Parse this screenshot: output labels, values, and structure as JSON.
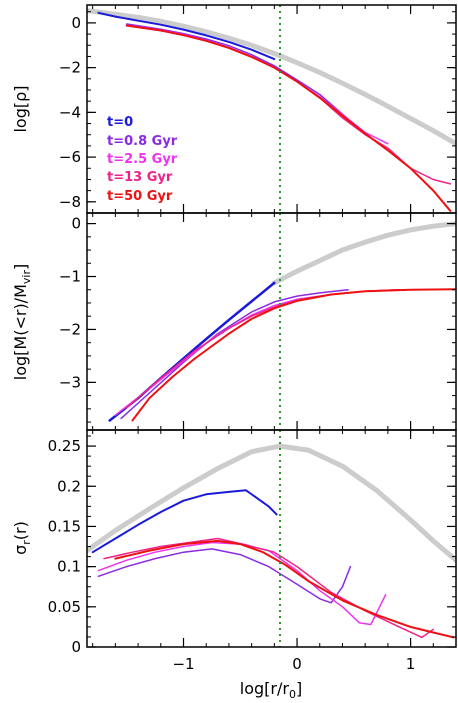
{
  "chart_data": [
    {
      "type": "line",
      "panel": "density",
      "ylabel": "log[ρ]",
      "xlim": [
        -1.85,
        1.4
      ],
      "ylim": [
        -8.5,
        0.8
      ],
      "yticks": [
        0,
        -2,
        -4,
        -6,
        -8
      ],
      "yticklabels": [
        "0",
        "−2",
        "−4",
        "−6",
        "−8"
      ],
      "legend": {
        "placement": "left",
        "entries": [
          {
            "label": "t=0",
            "color": "#1a1adb"
          },
          {
            "label": "t=0.8 Gyr",
            "color": "#8a2be2"
          },
          {
            "label": "t=2.5 Gyr",
            "color": "#ee33ee"
          },
          {
            "label": "t=13 Gyr",
            "color": "#ee2288"
          },
          {
            "label": "t=50 Gyr",
            "color": "#ee1111"
          }
        ]
      },
      "series": [
        {
          "color": "#cccccc",
          "width": 5,
          "x": [
            -1.85,
            -1.6,
            -1.4,
            -1.2,
            -1.0,
            -0.8,
            -0.6,
            -0.4,
            -0.2,
            0.0,
            0.2,
            0.4,
            0.6,
            0.8,
            1.0,
            1.2,
            1.4
          ],
          "y": [
            0.55,
            0.38,
            0.25,
            0.07,
            -0.15,
            -0.4,
            -0.68,
            -1.0,
            -1.37,
            -1.78,
            -2.22,
            -2.7,
            -3.2,
            -3.73,
            -4.27,
            -4.82,
            -5.4
          ]
        },
        {
          "color": "#1a1adb",
          "width": 2,
          "x": [
            -1.75,
            -1.6,
            -1.4,
            -1.2,
            -1.0,
            -0.8,
            -0.6,
            -0.4,
            -0.2
          ],
          "y": [
            0.45,
            0.28,
            0.1,
            -0.08,
            -0.3,
            -0.56,
            -0.85,
            -1.2,
            -1.62
          ]
        },
        {
          "color": "#8a2be2",
          "width": 1.5,
          "x": [
            -1.5,
            -1.2,
            -1.0,
            -0.8,
            -0.6,
            -0.4,
            -0.2,
            0.0,
            0.2,
            0.45
          ],
          "y": [
            -0.05,
            -0.28,
            -0.48,
            -0.72,
            -1.02,
            -1.42,
            -1.92,
            -2.55,
            -3.2,
            -4.3
          ]
        },
        {
          "color": "#ee33ee",
          "width": 1.5,
          "x": [
            -1.5,
            -1.2,
            -1.0,
            -0.8,
            -0.6,
            -0.4,
            -0.2,
            0.0,
            0.2,
            0.4,
            0.6,
            0.8
          ],
          "y": [
            -0.1,
            -0.32,
            -0.52,
            -0.78,
            -1.1,
            -1.5,
            -1.98,
            -2.62,
            -3.3,
            -4.1,
            -4.9,
            -5.4
          ]
        },
        {
          "color": "#ee2288",
          "width": 1.5,
          "x": [
            -1.5,
            -1.2,
            -1.0,
            -0.8,
            -0.6,
            -0.4,
            -0.2,
            0.0,
            0.2,
            0.4,
            0.6,
            0.8,
            1.0,
            1.2,
            1.35
          ],
          "y": [
            -0.12,
            -0.34,
            -0.55,
            -0.8,
            -1.12,
            -1.52,
            -2.0,
            -2.62,
            -3.35,
            -4.25,
            -5.0,
            -5.6,
            -6.5,
            -7.0,
            -7.2
          ]
        },
        {
          "color": "#ee1111",
          "width": 2,
          "x": [
            -1.5,
            -1.2,
            -1.0,
            -0.8,
            -0.6,
            -0.4,
            -0.2,
            0.0,
            0.2,
            0.4,
            0.6,
            0.8,
            1.0,
            1.2,
            1.35
          ],
          "y": [
            -0.12,
            -0.34,
            -0.55,
            -0.8,
            -1.12,
            -1.52,
            -2.0,
            -2.62,
            -3.35,
            -4.15,
            -4.95,
            -5.7,
            -6.5,
            -7.5,
            -8.4
          ]
        }
      ]
    },
    {
      "type": "line",
      "panel": "mass",
      "ylabel": "log[M(<r)/M_vir]",
      "xlim": [
        -1.85,
        1.4
      ],
      "ylim": [
        -3.9,
        0.2
      ],
      "yticks": [
        0,
        -1,
        -2,
        -3
      ],
      "yticklabels": [
        "0",
        "−1",
        "−2",
        "−3"
      ],
      "series": [
        {
          "color": "#cccccc",
          "width": 5,
          "x": [
            -0.2,
            0.0,
            0.2,
            0.4,
            0.6,
            0.8,
            1.0,
            1.2,
            1.4
          ],
          "y": [
            -1.12,
            -0.9,
            -0.7,
            -0.5,
            -0.35,
            -0.22,
            -0.12,
            -0.05,
            0.0
          ]
        },
        {
          "color": "#1a1adb",
          "width": 2.5,
          "x": [
            -1.65,
            -1.4,
            -1.2,
            -1.0,
            -0.8,
            -0.6,
            -0.4,
            -0.2
          ],
          "y": [
            -3.72,
            -3.3,
            -2.92,
            -2.55,
            -2.18,
            -1.82,
            -1.47,
            -1.12
          ]
        },
        {
          "color": "#8a2be2",
          "width": 1.5,
          "x": [
            -1.55,
            -1.3,
            -1.0,
            -0.7,
            -0.4,
            -0.2,
            0.0,
            0.2,
            0.45
          ],
          "y": [
            -3.68,
            -3.2,
            -2.62,
            -2.08,
            -1.67,
            -1.48,
            -1.37,
            -1.31,
            -1.25
          ]
        },
        {
          "color": "#ee33ee",
          "width": 1.5,
          "x": [
            -1.6,
            -1.3,
            -1.0,
            -0.7,
            -0.4,
            -0.2,
            0.0,
            0.3,
            0.6,
            0.9
          ],
          "y": [
            -3.62,
            -3.12,
            -2.6,
            -2.1,
            -1.73,
            -1.55,
            -1.43,
            -1.34,
            -1.28,
            -1.25
          ]
        },
        {
          "color": "#ee2288",
          "width": 1.5,
          "x": [
            -1.5,
            -1.2,
            -0.9,
            -0.6,
            -0.4,
            -0.2,
            0.0,
            0.3,
            0.6,
            0.9
          ],
          "y": [
            -3.48,
            -2.92,
            -2.4,
            -1.98,
            -1.75,
            -1.58,
            -1.45,
            -1.34,
            -1.28,
            -1.25
          ]
        },
        {
          "color": "#ee1111",
          "width": 2,
          "x": [
            -1.45,
            -1.3,
            -1.1,
            -0.9,
            -0.6,
            -0.4,
            -0.2,
            0.0,
            0.3,
            0.6,
            1.0,
            1.4
          ],
          "y": [
            -3.72,
            -3.3,
            -2.9,
            -2.55,
            -2.08,
            -1.8,
            -1.6,
            -1.46,
            -1.34,
            -1.28,
            -1.25,
            -1.24
          ]
        }
      ]
    },
    {
      "type": "line",
      "panel": "dispersion",
      "ylabel": "σ_r(r)",
      "xlabel": "log[r/r₀]",
      "xlim": [
        -1.85,
        1.4
      ],
      "ylim": [
        0,
        0.27
      ],
      "yticks": [
        0,
        0.05,
        0.1,
        0.15,
        0.2,
        0.25
      ],
      "yticklabels": [
        "0",
        "0.05",
        "0.1",
        "0.15",
        "0.2",
        "0.25"
      ],
      "xticks": [
        -1,
        0,
        1
      ],
      "xticklabels": [
        "−1",
        "0",
        "1"
      ],
      "vline_x": -0.15,
      "series": [
        {
          "color": "#cccccc",
          "width": 5,
          "x": [
            -1.85,
            -1.6,
            -1.3,
            -1.0,
            -0.7,
            -0.4,
            -0.15,
            0.1,
            0.4,
            0.7,
            1.0,
            1.2,
            1.4
          ],
          "y": [
            0.12,
            0.145,
            0.172,
            0.198,
            0.222,
            0.243,
            0.25,
            0.245,
            0.225,
            0.195,
            0.158,
            0.132,
            0.108
          ]
        },
        {
          "color": "#1a1adb",
          "width": 2,
          "x": [
            -1.8,
            -1.6,
            -1.4,
            -1.2,
            -1.0,
            -0.8,
            -0.6,
            -0.45,
            -0.35,
            -0.25,
            -0.18
          ],
          "y": [
            0.118,
            0.135,
            0.152,
            0.168,
            0.182,
            0.19,
            0.193,
            0.195,
            0.185,
            0.175,
            0.165
          ]
        },
        {
          "color": "#8a2be2",
          "width": 1.5,
          "x": [
            -1.75,
            -1.5,
            -1.25,
            -1.0,
            -0.75,
            -0.5,
            -0.25,
            0.0,
            0.2,
            0.3,
            0.4,
            0.47
          ],
          "y": [
            0.088,
            0.1,
            0.11,
            0.118,
            0.122,
            0.115,
            0.1,
            0.078,
            0.06,
            0.055,
            0.075,
            0.1
          ]
        },
        {
          "color": "#ee33ee",
          "width": 1.5,
          "x": [
            -1.75,
            -1.5,
            -1.25,
            -1.0,
            -0.75,
            -0.5,
            -0.25,
            0.0,
            0.2,
            0.4,
            0.55,
            0.65,
            0.78
          ],
          "y": [
            0.095,
            0.108,
            0.118,
            0.125,
            0.13,
            0.128,
            0.12,
            0.095,
            0.07,
            0.05,
            0.03,
            0.028,
            0.065
          ]
        },
        {
          "color": "#ee2288",
          "width": 1.5,
          "x": [
            -1.7,
            -1.45,
            -1.2,
            -0.95,
            -0.7,
            -0.45,
            -0.2,
            0.0,
            0.3,
            0.6,
            0.9,
            1.1,
            1.2
          ],
          "y": [
            0.11,
            0.118,
            0.125,
            0.13,
            0.135,
            0.127,
            0.118,
            0.1,
            0.068,
            0.045,
            0.025,
            0.012,
            0.022
          ]
        },
        {
          "color": "#ee1111",
          "width": 2,
          "x": [
            -1.6,
            -1.3,
            -1.0,
            -0.7,
            -0.5,
            -0.3,
            -0.1,
            0.1,
            0.4,
            0.7,
            1.0,
            1.2,
            1.38
          ],
          "y": [
            0.11,
            0.12,
            0.128,
            0.132,
            0.128,
            0.118,
            0.102,
            0.082,
            0.058,
            0.04,
            0.025,
            0.018,
            0.012
          ]
        }
      ]
    }
  ]
}
